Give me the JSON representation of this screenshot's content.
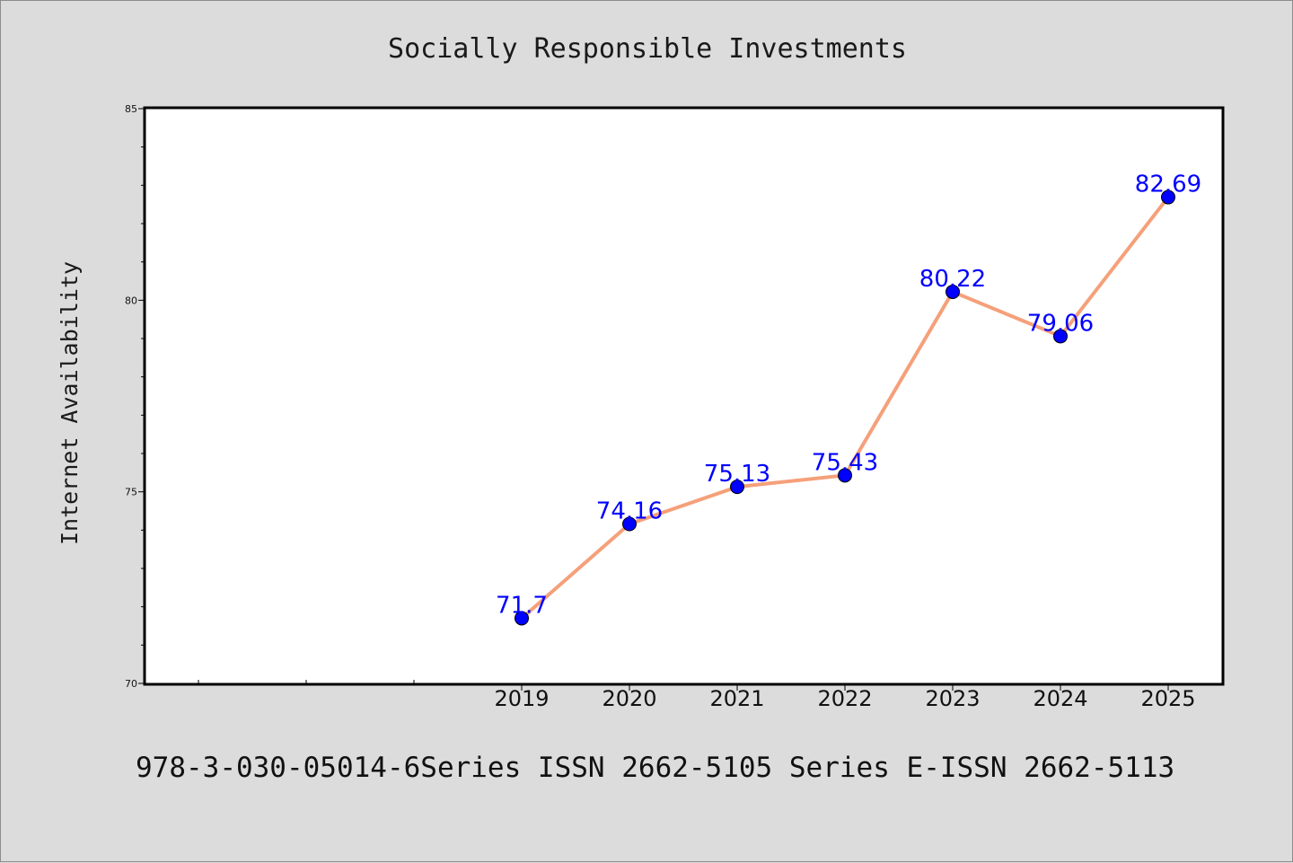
{
  "chart_data": {
    "type": "line",
    "title": "Socially Responsible Investments",
    "xlabel": "",
    "ylabel": "Internet Availability",
    "categories": [
      "2019",
      "2020",
      "2021",
      "2022",
      "2023",
      "2024",
      "2025"
    ],
    "series": [
      {
        "values": [
          71.7,
          74.16,
          75.13,
          75.43,
          80.22,
          79.06,
          82.69
        ]
      }
    ],
    "data_labels": [
      "71.7",
      "74.16",
      "75.13",
      "75.43",
      "80.22",
      "79.06",
      "82.69"
    ],
    "ylim": [
      70,
      85
    ],
    "yticks": [
      "70",
      "75",
      "80",
      "85"
    ],
    "grid": false,
    "line_color": "#f5a07a",
    "marker_color": "#0000ff",
    "label_color": "#0000ff",
    "background_color": "#dcdcdc",
    "plot_background_color": "#ffffff"
  },
  "footer_text": "978-3-030-05014-6Series ISSN 2662-5105 Series E-ISSN 2662-5113"
}
